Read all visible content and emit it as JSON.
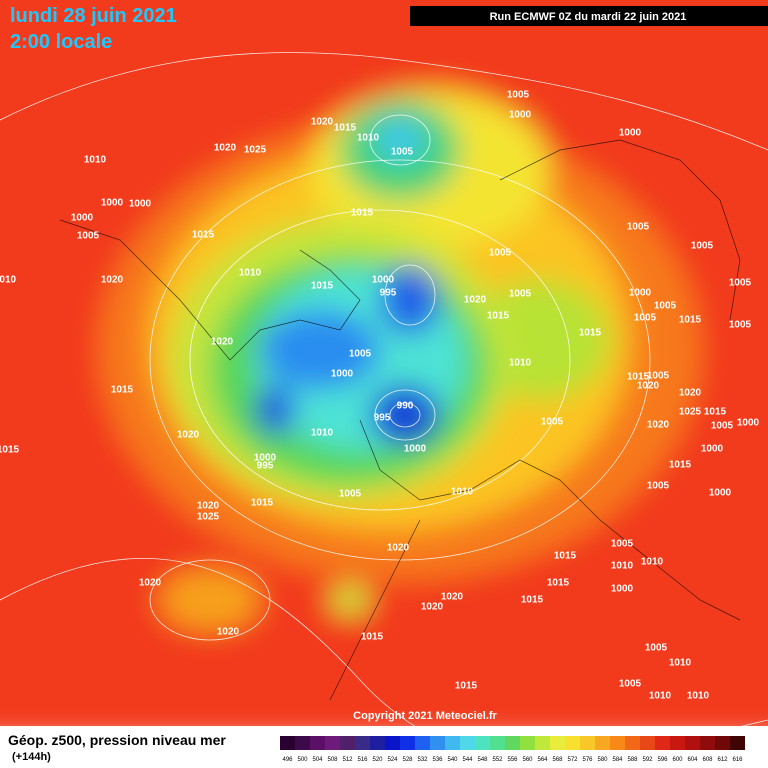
{
  "header": {
    "date": "lundi 28 juin 2021",
    "time": "2:00 locale",
    "run": "Run ECMWF 0Z du mardi 22 juin 2021"
  },
  "footer": {
    "title": "Géop. z500, pression niveau mer",
    "lead": "(+144h)",
    "copyright": "Copyright 2021 Meteociel.fr"
  },
  "legend": {
    "scale": [
      "496",
      "500",
      "504",
      "508",
      "512",
      "516",
      "520",
      "524",
      "528",
      "532",
      "536",
      "540",
      "544",
      "548",
      "552",
      "556",
      "560",
      "564",
      "568",
      "572",
      "576",
      "580",
      "584",
      "588",
      "592",
      "596",
      "600",
      "604",
      "608",
      "612",
      "616"
    ]
  },
  "isobars": [
    "1010",
    "1020",
    "1025",
    "1020",
    "1015",
    "1010",
    "1005",
    "1005",
    "1000",
    "1000",
    "1000",
    "1000",
    "1000",
    "1005",
    "1015",
    "1015",
    "1005",
    "1005",
    "1005",
    "1010",
    "1015",
    "1000",
    "995",
    "1020",
    "1005",
    "1000",
    "1005",
    "1010",
    "1020",
    "1015",
    "1015",
    "1005",
    "1005",
    "1015",
    "1005",
    "1020",
    "1005",
    "1010",
    "1015",
    "1000",
    "1015",
    "1020",
    "1005",
    "1020",
    "990",
    "995",
    "1025",
    "1015",
    "1020",
    "1005",
    "1000",
    "1005",
    "1020",
    "1010",
    "1000",
    "1015",
    "1000",
    "1000",
    "995",
    "1015",
    "1010",
    "1005",
    "1005",
    "1000",
    "1020",
    "1025",
    "1015",
    "1020",
    "1005",
    "1015",
    "1010",
    "1010",
    "1020",
    "1015",
    "1000",
    "1020",
    "1015",
    "1020",
    "1020",
    "1015",
    "1005",
    "1010",
    "1005",
    "1015",
    "1010",
    "1010"
  ]
}
